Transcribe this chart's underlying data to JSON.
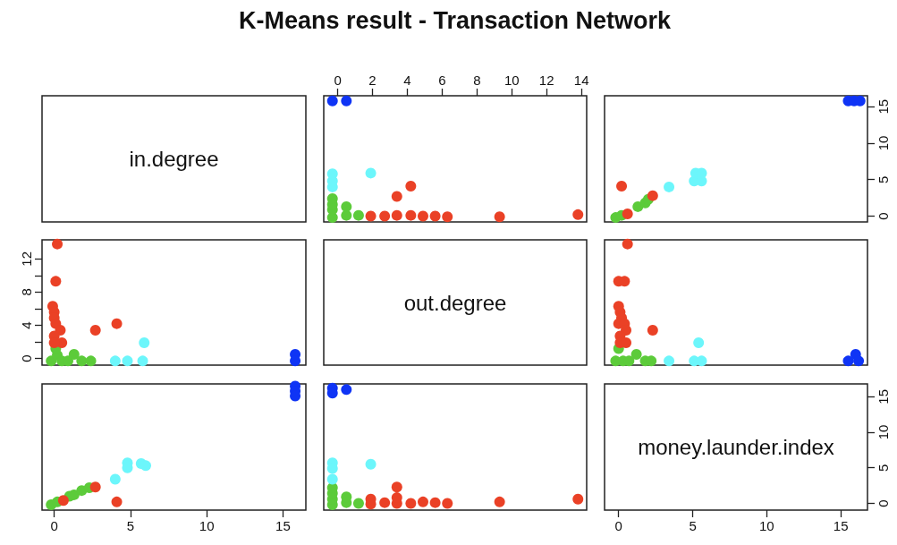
{
  "chart_data": [
    {
      "type": "other",
      "title": "K-Means result - Transaction Network",
      "annotations": [
        "in.degree"
      ]
    },
    {
      "type": "scatter",
      "marker": "circle",
      "xlim": [
        -0.8,
        14.3
      ],
      "xticks": [
        0,
        2,
        4,
        6,
        8,
        10,
        12,
        14
      ],
      "ylim": [
        -0.8,
        16.5
      ],
      "tick_labels": "x",
      "series": [
        {
          "color": "#5ccb3a",
          "x": [
            -0.3,
            0.5,
            1.2,
            -0.3,
            0.5,
            -0.3,
            -0.3
          ],
          "values": [
            -0.2,
            0.1,
            0.1,
            0.9,
            1.3,
            1.6,
            2.4
          ]
        },
        {
          "color": "#ea4126",
          "x": [
            13.8,
            9.3,
            6.3,
            5.6,
            4.9,
            4.2,
            4.2,
            3.4,
            3.4,
            2.7,
            1.9
          ],
          "values": [
            0.2,
            -0.1,
            -0.1,
            0,
            0,
            0.1,
            4.1,
            0.1,
            2.7,
            0,
            0
          ]
        },
        {
          "color": "#6cf6fb",
          "x": [
            -0.3,
            -0.3,
            -0.3,
            1.9
          ],
          "values": [
            4,
            4.8,
            5.8,
            5.9
          ]
        },
        {
          "color": "#0f34f5",
          "x": [
            0.5,
            -0.3
          ],
          "values": [
            15.8,
            15.8
          ]
        }
      ]
    },
    {
      "type": "scatter",
      "marker": "circle",
      "xlim": [
        -0.95,
        16.8
      ],
      "ylim": [
        -0.8,
        16.5
      ],
      "yticks": [
        0,
        5,
        10,
        15
      ],
      "tick_labels": "y",
      "series": [
        {
          "color": "#5ccb3a",
          "x": [
            -0.2,
            0.2,
            1.3,
            1.8,
            2
          ],
          "values": [
            -0.2,
            0.1,
            1.3,
            1.8,
            2.3
          ]
        },
        {
          "color": "#ea4126",
          "x": [
            0.6,
            0.2,
            2.3
          ],
          "values": [
            0.3,
            4.1,
            2.8
          ]
        },
        {
          "color": "#6cf6fb",
          "x": [
            3.4,
            5.1,
            5.6,
            5.2,
            5.6
          ],
          "values": [
            4,
            4.8,
            4.8,
            5.9,
            5.9
          ]
        },
        {
          "color": "#0f34f5",
          "x": [
            15.5,
            15.9,
            16.3
          ],
          "values": [
            15.8,
            15.8,
            15.8
          ]
        }
      ]
    },
    {
      "type": "scatter",
      "marker": "circle",
      "xlim": [
        -0.8,
        16.5
      ],
      "ylim": [
        -0.8,
        14.3
      ],
      "yticks": [
        0,
        {
          "value": 2,
          "label": null
        },
        4,
        {
          "value": 6,
          "label": null
        },
        8,
        {
          "value": 10,
          "label": null
        },
        12
      ],
      "tick_labels": "y",
      "series": [
        {
          "color": "#5ccb3a",
          "x": [
            -0.2,
            0.2,
            0.1,
            0.5,
            0.9,
            1.3,
            1.8,
            2.4
          ],
          "values": [
            -0.3,
            0.4,
            1.2,
            -0.3,
            -0.3,
            0.5,
            -0.3,
            -0.3
          ]
        },
        {
          "color": "#ea4126",
          "x": [
            0.2,
            0.1,
            -0.1,
            0,
            0,
            0.1,
            4.1,
            0.4,
            2.7,
            0,
            0.5,
            0
          ],
          "values": [
            13.8,
            9.3,
            6.3,
            5.6,
            4.9,
            4.2,
            4.2,
            3.4,
            3.4,
            2.7,
            1.9,
            1.9
          ]
        },
        {
          "color": "#6cf6fb",
          "x": [
            4,
            4.8,
            5.8,
            5.9
          ],
          "values": [
            -0.3,
            -0.3,
            -0.3,
            1.9
          ]
        },
        {
          "color": "#0f34f5",
          "x": [
            15.8,
            15.8
          ],
          "values": [
            0.5,
            -0.3
          ]
        }
      ]
    },
    {
      "type": "other",
      "annotations": [
        "out.degree"
      ]
    },
    {
      "type": "scatter",
      "marker": "circle",
      "xlim": [
        -0.95,
        16.8
      ],
      "ylim": [
        -0.8,
        14.3
      ],
      "tick_labels": false,
      "series": [
        {
          "color": "#5ccb3a",
          "x": [
            -0.2,
            0,
            0.3,
            0.7,
            1.2,
            1.8,
            2.2
          ],
          "values": [
            -0.3,
            1.2,
            -0.3,
            -0.3,
            0.5,
            -0.3,
            -0.3
          ]
        },
        {
          "color": "#ea4126",
          "x": [
            0.6,
            0,
            0.4,
            0,
            0.1,
            0.2,
            0,
            0.4,
            0.5,
            2.3,
            0.1,
            0.1,
            0.5
          ],
          "values": [
            13.8,
            9.3,
            9.3,
            6.3,
            5.6,
            4.9,
            4.2,
            4.2,
            3.4,
            3.4,
            2.7,
            1.9,
            1.9
          ]
        },
        {
          "color": "#6cf6fb",
          "x": [
            3.4,
            5.1,
            5.6,
            5.4
          ],
          "values": [
            -0.3,
            -0.3,
            -0.3,
            1.9
          ]
        },
        {
          "color": "#0f34f5",
          "x": [
            16,
            16.2,
            15.5
          ],
          "values": [
            0.5,
            -0.3,
            -0.3
          ]
        }
      ]
    },
    {
      "type": "scatter",
      "marker": "circle",
      "xlim": [
        -0.8,
        16.5
      ],
      "xticks": [
        0,
        5,
        10,
        15
      ],
      "ylim": [
        -0.95,
        16.8
      ],
      "tick_labels": "x",
      "series": [
        {
          "color": "#5ccb3a",
          "x": [
            -0.2,
            0.2,
            1,
            1.3,
            1.8,
            2.3
          ],
          "values": [
            -0.2,
            0.2,
            1,
            1.2,
            1.8,
            2.2
          ]
        },
        {
          "color": "#ea4126",
          "x": [
            0.6,
            4.1,
            2.7
          ],
          "values": [
            0.4,
            0.2,
            2.3
          ]
        },
        {
          "color": "#6cf6fb",
          "x": [
            4,
            4.8,
            4.8,
            5.7,
            6
          ],
          "values": [
            3.4,
            5.7,
            5,
            5.6,
            5.3
          ]
        },
        {
          "color": "#0f34f5",
          "x": [
            15.8,
            15.8,
            15.8
          ],
          "values": [
            16.5,
            15.8,
            15.1
          ]
        }
      ]
    },
    {
      "type": "scatter",
      "marker": "circle",
      "xlim": [
        -0.8,
        14.3
      ],
      "ylim": [
        -0.95,
        16.8
      ],
      "tick_labels": false,
      "series": [
        {
          "color": "#5ccb3a",
          "x": [
            -0.3,
            -0.3,
            -0.3,
            -0.3,
            0.5,
            0.5,
            1.2
          ],
          "values": [
            -0.2,
            0.6,
            1.4,
            2.2,
            0.1,
            0.9,
            0
          ]
        },
        {
          "color": "#ea4126",
          "x": [
            13.8,
            9.3,
            6.3,
            5.6,
            4.9,
            4.2,
            3.4,
            3.4,
            3.4,
            2.7,
            1.9,
            1.9
          ],
          "values": [
            0.6,
            0.2,
            0,
            0.1,
            0.2,
            0,
            0,
            0.8,
            2.3,
            0.1,
            0.6,
            -0.1
          ]
        },
        {
          "color": "#6cf6fb",
          "x": [
            -0.3,
            -0.3,
            -0.3,
            1.9
          ],
          "values": [
            3.4,
            5.7,
            4.9,
            5.5
          ]
        },
        {
          "color": "#0f34f5",
          "x": [
            0.5,
            -0.3,
            -0.3
          ],
          "values": [
            16,
            16.2,
            15.5
          ]
        }
      ]
    },
    {
      "type": "scatter",
      "annotations": [
        "money.launder.index"
      ],
      "xlim": [
        -0.95,
        16.8
      ],
      "xticks": [
        0,
        5,
        10,
        15
      ],
      "ylim": [
        -0.95,
        16.8
      ],
      "yticks": [
        0,
        5,
        10,
        15
      ]
    }
  ]
}
